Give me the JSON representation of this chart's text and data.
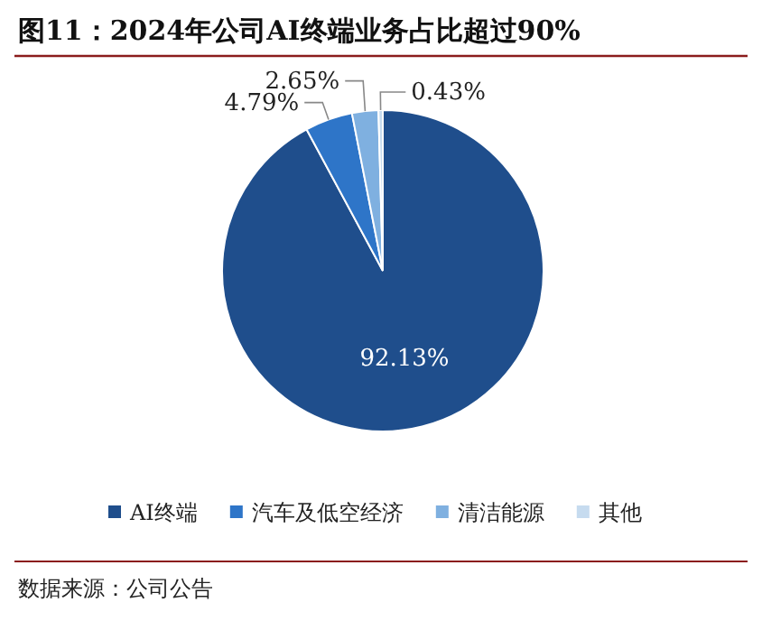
{
  "chart_data": {
    "type": "pie",
    "title": "图11：2024年公司AI终端业务占比超过90%",
    "categories": [
      "AI终端",
      "汽车及低空经济",
      "清洁能源",
      "其他"
    ],
    "values": [
      92.13,
      4.79,
      2.65,
      0.43
    ],
    "colors": [
      "#1f4e8c",
      "#2e75c8",
      "#7fb0e0",
      "#c6dbef"
    ],
    "value_labels": [
      "92.13%",
      "4.79%",
      "2.65%",
      "0.43%"
    ],
    "legend": "bottom",
    "annotations": [
      "数据来源：公司公告"
    ]
  }
}
